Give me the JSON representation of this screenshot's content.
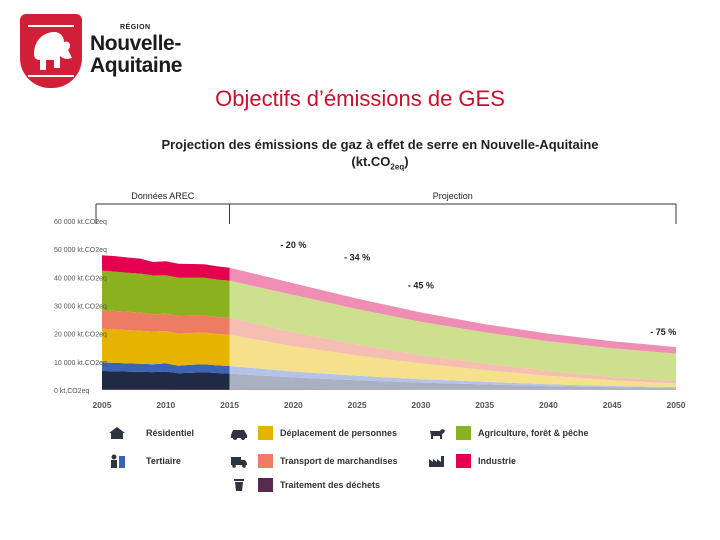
{
  "logo": {
    "region": "RÉGION",
    "name_line1": "Nouvelle-",
    "name_line2": "Aquitaine"
  },
  "slide_title": "Objectifs d’émissions de GES",
  "chart_data": {
    "type": "area",
    "title_line1": "Projection des émissions de gaz à effet de serre en Nouvelle-Aquitaine",
    "title_unit_prefix": "(kt.CO",
    "title_unit_sub": "2eq",
    "title_unit_suffix": ")",
    "period_labels": [
      "Données AREC",
      "Projection"
    ],
    "x": [
      2005,
      2006,
      2007,
      2008,
      2009,
      2010,
      2011,
      2012,
      2013,
      2014,
      2015,
      2020,
      2025,
      2030,
      2035,
      2040,
      2045,
      2050
    ],
    "x_ticks": [
      "2005",
      "2010",
      "2015",
      "2020",
      "2025",
      "2030",
      "2035",
      "2040",
      "2045",
      "2050"
    ],
    "y_ticks": [
      "0 kt.CO2eq",
      "10 000 kt.CO2eq",
      "20 000 kt.CO2eq",
      "30 000 kt.CO2eq",
      "40 000 kt.CO2eq",
      "50 000 kt.CO2eq",
      "60 000 kt.CO2eq"
    ],
    "ylim": [
      0,
      60000
    ],
    "series": [
      {
        "name": "Résidentiel",
        "color": "#1f2a44",
        "projection_color": "#aab0c0",
        "values": [
          6500,
          6400,
          6300,
          6200,
          6100,
          6300,
          5700,
          5900,
          6100,
          5800,
          5600,
          4300,
          3300,
          2500,
          1900,
          1300,
          900,
          600
        ]
      },
      {
        "name": "Tertiaire",
        "color": "#3d64b4",
        "projection_color": "#b4c3e6",
        "values": [
          3000,
          3000,
          2900,
          2900,
          2800,
          2900,
          2700,
          2800,
          2800,
          2700,
          2700,
          2100,
          1600,
          1200,
          900,
          650,
          450,
          350
        ]
      },
      {
        "name": "Déplacement de personnes",
        "color": "#e6b400",
        "projection_color": "#f5e08c",
        "values": [
          12000,
          11900,
          11800,
          11700,
          11600,
          11500,
          11400,
          11300,
          11300,
          11200,
          11100,
          9000,
          7200,
          5600,
          4200,
          3000,
          2000,
          1300
        ]
      },
      {
        "name": "Transport de marchandises",
        "color": "#ee7c64",
        "projection_color": "#f6bdb2",
        "values": [
          6600,
          6500,
          6500,
          6400,
          6100,
          6200,
          6200,
          6100,
          6000,
          6000,
          6000,
          4900,
          3900,
          3000,
          2300,
          1700,
          1200,
          800
        ]
      },
      {
        "name": "Agriculture, forêt & pêche",
        "color": "#8bb21e",
        "projection_color": "#cde08e",
        "values": [
          14000,
          14000,
          13900,
          13900,
          13800,
          13600,
          13600,
          13500,
          13400,
          13300,
          13200,
          13300,
          12600,
          11800,
          11100,
          10600,
          10200,
          9800
        ]
      },
      {
        "name": "Industrie",
        "color": "#e4004f",
        "projection_color": "#f08db4",
        "values": [
          5500,
          5500,
          5400,
          5300,
          4800,
          5000,
          5000,
          4900,
          4800,
          4700,
          4600,
          4100,
          3700,
          3300,
          2900,
          2700,
          2500,
          2300
        ]
      },
      {
        "name": "Traitement des déchets",
        "color": "#5a2a4e",
        "projection_color": "#b08aa6",
        "values": [
          250,
          250,
          250,
          240,
          240,
          240,
          230,
          230,
          230,
          220,
          220,
          180,
          150,
          120,
          100,
          90,
          80,
          70
        ]
      }
    ],
    "annotations": [
      {
        "text": "- 20 %",
        "x": 2020,
        "y": 50500
      },
      {
        "text": "- 34 %",
        "x": 2025,
        "y": 46000
      },
      {
        "text": "- 45 %",
        "x": 2030,
        "y": 36000
      },
      {
        "text": "- 75 %",
        "x": 2049,
        "y": 19500
      }
    ]
  },
  "legend": {
    "residentiel": "Résidentiel",
    "tertiaire": "Tertiaire",
    "deplacement": "Déplacement de personnes",
    "transport": "Transport de marchandises",
    "dechets": "Traitement des déchets",
    "agriculture": "Agriculture, forêt & pêche",
    "industrie": "Industrie",
    "icon_color": "#2e3440"
  }
}
